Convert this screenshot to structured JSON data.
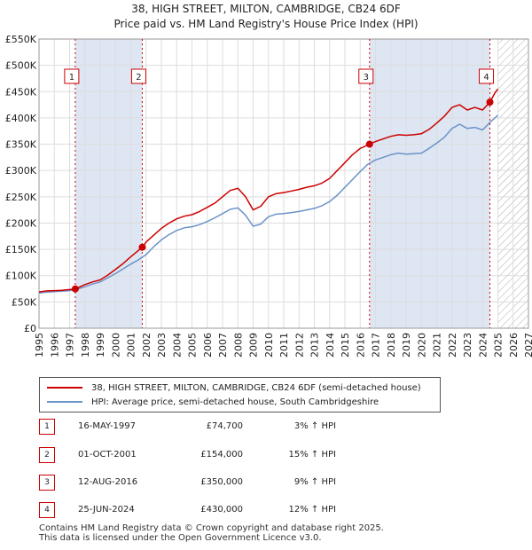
{
  "header": {
    "title": "38, HIGH STREET, MILTON, CAMBRIDGE, CB24 6DF",
    "subtitle": "Price paid vs. HM Land Registry's House Price Index (HPI)"
  },
  "colors": {
    "price_line": "#cc0000",
    "hpi_line": "#6b93c8",
    "sale_region": "#dde6f2",
    "future_hatch": "#aaaaaa"
  },
  "chart_data": {
    "type": "line",
    "title": "Price paid vs. HM Land Registry's House Price Index (HPI)",
    "xlabel": "",
    "ylabel": "",
    "xlim": [
      1995,
      2027
    ],
    "ylim": [
      0,
      550000
    ],
    "x_ticks": [
      "1995",
      "1996",
      "1997",
      "1998",
      "1999",
      "2000",
      "2001",
      "2002",
      "2003",
      "2004",
      "2005",
      "2006",
      "2007",
      "2008",
      "2009",
      "2010",
      "2011",
      "2012",
      "2013",
      "2014",
      "2015",
      "2016",
      "2017",
      "2018",
      "2019",
      "2020",
      "2021",
      "2022",
      "2023",
      "2024",
      "2025",
      "2026",
      "2027"
    ],
    "y_ticks": [
      {
        "value": 0,
        "label": "£0"
      },
      {
        "value": 50000,
        "label": "£50K"
      },
      {
        "value": 100000,
        "label": "£100K"
      },
      {
        "value": 150000,
        "label": "£150K"
      },
      {
        "value": 200000,
        "label": "£200K"
      },
      {
        "value": 250000,
        "label": "£250K"
      },
      {
        "value": 300000,
        "label": "£300K"
      },
      {
        "value": 350000,
        "label": "£350K"
      },
      {
        "value": 400000,
        "label": "£400K"
      },
      {
        "value": 450000,
        "label": "£450K"
      },
      {
        "value": 500000,
        "label": "£500K"
      },
      {
        "value": 550000,
        "label": "£550K"
      }
    ],
    "grid": true,
    "future_from": 2025.0,
    "sale_regions": [
      [
        1997.37,
        2001.75
      ],
      [
        2016.61,
        2024.48
      ]
    ],
    "series": [
      {
        "name": "38, HIGH STREET, MILTON, CAMBRIDGE, CB24 6DF (semi-detached house)",
        "color": "#cc0000",
        "x": [
          1995.0,
          1995.5,
          1996.0,
          1996.5,
          1997.0,
          1997.37,
          1998.0,
          1998.5,
          1999.0,
          1999.5,
          2000.0,
          2000.5,
          2001.0,
          2001.5,
          2001.75,
          2002.0,
          2002.5,
          2003.0,
          2003.5,
          2004.0,
          2004.5,
          2005.0,
          2005.5,
          2006.0,
          2006.5,
          2007.0,
          2007.5,
          2008.0,
          2008.5,
          2009.0,
          2009.5,
          2010.0,
          2010.5,
          2011.0,
          2011.5,
          2012.0,
          2012.5,
          2013.0,
          2013.5,
          2014.0,
          2014.5,
          2015.0,
          2015.5,
          2016.0,
          2016.61,
          2017.0,
          2017.5,
          2018.0,
          2018.5,
          2019.0,
          2019.5,
          2020.0,
          2020.5,
          2021.0,
          2021.5,
          2022.0,
          2022.5,
          2023.0,
          2023.5,
          2024.0,
          2024.48,
          2024.8,
          2025.0
        ],
        "values": [
          69000,
          71000,
          71500,
          72000,
          73500,
          74700,
          83000,
          88000,
          92000,
          101000,
          112000,
          123000,
          136000,
          148000,
          154000,
          164000,
          177000,
          190000,
          200000,
          208000,
          213000,
          216000,
          222000,
          230000,
          238000,
          250000,
          262000,
          266000,
          250000,
          225000,
          232000,
          250000,
          256000,
          258000,
          261000,
          264000,
          268000,
          271000,
          276000,
          285000,
          300000,
          315000,
          330000,
          342000,
          350000,
          355000,
          360000,
          365000,
          368000,
          367000,
          368000,
          370000,
          378000,
          390000,
          403000,
          420000,
          425000,
          415000,
          420000,
          415000,
          430000,
          447000,
          455000
        ]
      },
      {
        "name": "HPI: Average price, semi-detached house, South Cambridgeshire",
        "color": "#6b93c8",
        "x": [
          1995.0,
          1995.5,
          1996.0,
          1996.5,
          1997.0,
          1997.5,
          1998.0,
          1998.5,
          1999.0,
          1999.5,
          2000.0,
          2000.5,
          2001.0,
          2001.5,
          2002.0,
          2002.5,
          2003.0,
          2003.5,
          2004.0,
          2004.5,
          2005.0,
          2005.5,
          2006.0,
          2006.5,
          2007.0,
          2007.5,
          2008.0,
          2008.5,
          2009.0,
          2009.5,
          2010.0,
          2010.5,
          2011.0,
          2011.5,
          2012.0,
          2012.5,
          2013.0,
          2013.5,
          2014.0,
          2014.5,
          2015.0,
          2015.5,
          2016.0,
          2016.5,
          2017.0,
          2017.5,
          2018.0,
          2018.5,
          2019.0,
          2019.5,
          2020.0,
          2020.5,
          2021.0,
          2021.5,
          2022.0,
          2022.5,
          2023.0,
          2023.5,
          2024.0,
          2024.5,
          2025.0
        ],
        "values": [
          67000,
          68500,
          69500,
          70500,
          71500,
          74000,
          79000,
          84000,
          88000,
          96000,
          104000,
          113000,
          122000,
          130000,
          140000,
          155000,
          168000,
          178000,
          186000,
          191000,
          193000,
          197000,
          203000,
          210000,
          218000,
          226000,
          229000,
          215000,
          194000,
          198000,
          212000,
          217000,
          218000,
          220000,
          222000,
          225000,
          228000,
          233000,
          241000,
          253000,
          268000,
          283000,
          298000,
          312000,
          320000,
          325000,
          330000,
          333000,
          331000,
          332000,
          333000,
          342000,
          352000,
          363000,
          380000,
          388000,
          380000,
          382000,
          377000,
          392000,
          405000
        ]
      }
    ],
    "sales": [
      {
        "label": "1",
        "x": 1997.37,
        "value": 74700
      },
      {
        "label": "2",
        "x": 2001.75,
        "value": 154000
      },
      {
        "label": "3",
        "x": 2016.61,
        "value": 350000
      },
      {
        "label": "4",
        "x": 2024.48,
        "value": 430000
      }
    ]
  },
  "legend": {
    "price_label": "38, HIGH STREET, MILTON, CAMBRIDGE, CB24 6DF (semi-detached house)",
    "hpi_label": "HPI: Average price, semi-detached house, South Cambridgeshire"
  },
  "sales_table": [
    {
      "num": "1",
      "date": "16-MAY-1997",
      "price": "£74,700",
      "hpi": "3% ↑ HPI"
    },
    {
      "num": "2",
      "date": "01-OCT-2001",
      "price": "£154,000",
      "hpi": "15% ↑ HPI"
    },
    {
      "num": "3",
      "date": "12-AUG-2016",
      "price": "£350,000",
      "hpi": "9% ↑ HPI"
    },
    {
      "num": "4",
      "date": "25-JUN-2024",
      "price": "£430,000",
      "hpi": "12% ↑ HPI"
    }
  ],
  "footer": {
    "line1": "Contains HM Land Registry data © Crown copyright and database right 2025.",
    "line2": "This data is licensed under the Open Government Licence v3.0."
  }
}
